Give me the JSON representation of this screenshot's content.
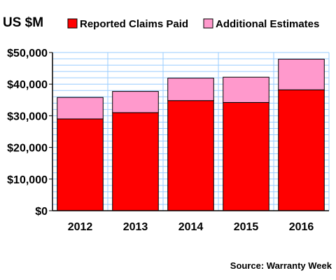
{
  "chart_data": {
    "type": "bar",
    "stacked": true,
    "unit_label": "US $M",
    "categories": [
      "2012",
      "2013",
      "2014",
      "2015",
      "2016"
    ],
    "series": [
      {
        "name": "Reported Claims Paid",
        "color": "#ff0000",
        "values": [
          29000,
          31000,
          34800,
          34200,
          38200
        ]
      },
      {
        "name": "Additional Estimates",
        "color": "#ff99cc",
        "values": [
          6800,
          6700,
          7100,
          8000,
          9700
        ]
      }
    ],
    "ylim": [
      0,
      50000
    ],
    "y_ticks": [
      0,
      10000,
      20000,
      30000,
      40000,
      50000
    ],
    "y_tick_labels": [
      "$0",
      "$10,000",
      "$20,000",
      "$30,000",
      "$40,000",
      "$50,000"
    ],
    "grid": true,
    "legend_position": "top",
    "plot_background": "#ffffff",
    "grid_color": "#99ccff",
    "source": "Source: Warranty Week"
  }
}
